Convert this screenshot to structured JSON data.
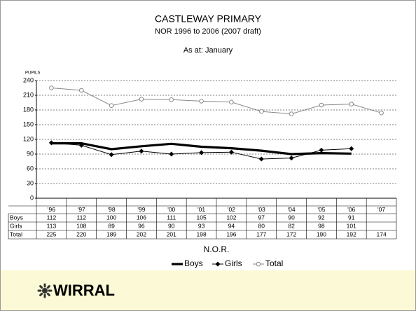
{
  "chart_data": {
    "type": "line",
    "title": "CASTLEWAY PRIMARY",
    "subtitle": "NOR  1996 to 2006 (2007 draft)",
    "annotation": "As at: January",
    "y_label": "PUPILS",
    "x_label": "N.O.R.",
    "categories": [
      "'96",
      "'97",
      "'98",
      "'99",
      "'00",
      "'01",
      "'02",
      "'03",
      "'04",
      "'05",
      "'06",
      "'07"
    ],
    "series": [
      {
        "name": "Boys",
        "color": "#000000",
        "values": [
          112,
          112,
          100,
          106,
          111,
          105,
          102,
          97,
          90,
          92,
          91,
          null
        ]
      },
      {
        "name": "Girls",
        "color": "#000000",
        "values": [
          113,
          108,
          89,
          96,
          90,
          93,
          94,
          80,
          82,
          98,
          101,
          null
        ]
      },
      {
        "name": "Total",
        "color": "#888888",
        "values": [
          225,
          220,
          189,
          202,
          201,
          198,
          196,
          177,
          172,
          190,
          192,
          174
        ]
      }
    ],
    "ylim": [
      0,
      240
    ],
    "yticks": [
      0,
      30,
      60,
      90,
      120,
      150,
      180,
      210,
      240
    ],
    "grid": true,
    "legend": "bottom"
  },
  "footer": {
    "logo": "WIRRAL"
  }
}
